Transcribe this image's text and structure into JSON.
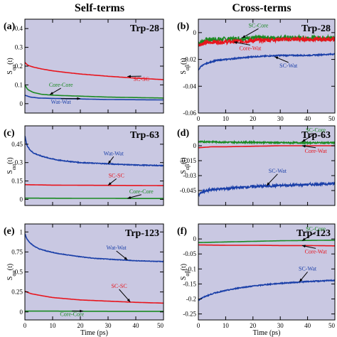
{
  "column_titles": [
    "Self-terms",
    "Cross-terms"
  ],
  "x_axis_label": "Time (ps)",
  "colors": {
    "panel_bg": "#c9c8e2",
    "red": "#e8141c",
    "green": "#1a8a22",
    "blue": "#1a3fa8",
    "axis": "#000000"
  },
  "chart_data": [
    {
      "type": "line",
      "panel": "(a)",
      "title": "Trp-28",
      "ylabel": "S_αα(t)",
      "xlim": [
        0,
        50
      ],
      "ylim": [
        -0.05,
        0.45
      ],
      "xticks": [
        0,
        10,
        20,
        30,
        40,
        50
      ],
      "xtick_labels": [],
      "yticks": [
        0,
        0.1,
        0.2,
        0.3,
        0.4
      ],
      "ytick_labels": [
        "0",
        "0.1",
        "0.2",
        "0.3",
        "0.4"
      ],
      "series": [
        {
          "name": "SC-SC",
          "color": "red",
          "noise": 0.0,
          "x": [
            0,
            1,
            3,
            6,
            10,
            15,
            20,
            30,
            40,
            50
          ],
          "y": [
            0.22,
            0.205,
            0.195,
            0.185,
            0.175,
            0.166,
            0.158,
            0.146,
            0.136,
            0.128
          ]
        },
        {
          "name": "Core-Core",
          "color": "green",
          "noise": 0.0,
          "x": [
            0,
            1,
            3,
            6,
            10,
            20,
            30,
            50
          ],
          "y": [
            0.1,
            0.075,
            0.06,
            0.05,
            0.045,
            0.04,
            0.035,
            0.03
          ]
        },
        {
          "name": "Wat-Wat",
          "color": "blue",
          "noise": 0.0,
          "x": [
            0,
            2,
            5,
            10,
            20,
            30,
            50
          ],
          "y": [
            0.045,
            0.035,
            0.03,
            0.028,
            0.025,
            0.022,
            0.02
          ]
        }
      ],
      "annotations": [
        {
          "text": "SC-SC",
          "color": "red",
          "at": [
            42,
            0.12
          ],
          "tip": [
            37,
            0.145
          ]
        },
        {
          "text": "Core-Core",
          "color": "green",
          "at": [
            13,
            0.09
          ],
          "tip": [
            9,
            0.048
          ]
        },
        {
          "text": "Wat-Wat",
          "color": "blue",
          "at": [
            13,
            0.0
          ],
          "tip": [
            20,
            0.027
          ]
        }
      ]
    },
    {
      "type": "line",
      "panel": "(b)",
      "title": "Trp-28",
      "ylabel": "S_αβ(t)",
      "xlim": [
        0,
        50
      ],
      "ylim": [
        -0.06,
        0.01
      ],
      "xticks": [
        0,
        10,
        20,
        30,
        40,
        50
      ],
      "xtick_labels": [
        "0",
        "10",
        "20",
        "30",
        "40",
        "50"
      ],
      "yticks": [
        0,
        -0.02,
        -0.04,
        -0.06
      ],
      "ytick_labels": [
        "0",
        "-0.02",
        "-0.04",
        "-0.06"
      ],
      "series": [
        {
          "name": "SC-Core",
          "color": "green",
          "noise": 0.0018,
          "x": [
            0,
            2,
            5,
            10,
            20,
            30,
            50
          ],
          "y": [
            -0.008,
            -0.006,
            -0.005,
            -0.005,
            -0.004,
            -0.004,
            -0.004
          ]
        },
        {
          "name": "Core-Wat",
          "color": "red",
          "noise": 0.0015,
          "x": [
            0,
            2,
            5,
            10,
            20,
            30,
            50
          ],
          "y": [
            -0.009,
            -0.008,
            -0.007,
            -0.007,
            -0.006,
            -0.005,
            -0.005
          ]
        },
        {
          "name": "SC-Wat",
          "color": "blue",
          "noise": 0.0004,
          "x": [
            0,
            1,
            3,
            6,
            10,
            15,
            20,
            30,
            40,
            50
          ],
          "y": [
            -0.028,
            -0.025,
            -0.023,
            -0.021,
            -0.02,
            -0.019,
            -0.018,
            -0.017,
            -0.017,
            -0.016
          ]
        }
      ],
      "annotations": [
        {
          "text": "SC-Core",
          "color": "green",
          "at": [
            22,
            0.004
          ],
          "tip": [
            16,
            -0.004
          ]
        },
        {
          "text": "Core-Wat",
          "color": "red",
          "at": [
            19,
            -0.013
          ],
          "tip": [
            13,
            -0.007
          ]
        },
        {
          "text": "SC-Wat",
          "color": "blue",
          "at": [
            33,
            -0.026
          ],
          "tip": [
            28,
            -0.018
          ]
        }
      ]
    },
    {
      "type": "line",
      "panel": "(c)",
      "title": "Trp-63",
      "ylabel": "S_αα(t)",
      "xlim": [
        0,
        50
      ],
      "ylim": [
        -0.05,
        0.6
      ],
      "xticks": [
        0,
        10,
        20,
        30,
        40,
        50
      ],
      "xtick_labels": [],
      "yticks": [
        0,
        0.15,
        0.3,
        0.45
      ],
      "ytick_labels": [
        "0",
        "0.15",
        "0.3",
        "0.45"
      ],
      "series": [
        {
          "name": "Wat-Wat",
          "color": "blue",
          "noise": 0.003,
          "x": [
            0,
            0.5,
            1,
            2,
            3,
            5,
            8,
            12,
            16,
            20,
            25,
            30,
            35,
            40,
            45,
            50
          ],
          "y": [
            0.52,
            0.46,
            0.43,
            0.4,
            0.38,
            0.36,
            0.34,
            0.32,
            0.31,
            0.3,
            0.295,
            0.29,
            0.285,
            0.28,
            0.278,
            0.275
          ]
        },
        {
          "name": "SC-SC",
          "color": "red",
          "noise": 0.0,
          "x": [
            0,
            5,
            10,
            20,
            30,
            40,
            50
          ],
          "y": [
            0.12,
            0.118,
            0.116,
            0.115,
            0.114,
            0.113,
            0.112
          ]
        },
        {
          "name": "Core-Core",
          "color": "green",
          "noise": 0.0,
          "x": [
            0,
            10,
            20,
            30,
            40,
            50
          ],
          "y": [
            0.01,
            0.009,
            0.008,
            0.008,
            0.007,
            0.007
          ]
        }
      ],
      "annotations": [
        {
          "text": "Wat-Wat",
          "color": "blue",
          "at": [
            32,
            0.36
          ],
          "tip": [
            30,
            0.29
          ]
        },
        {
          "text": "SC-SC",
          "color": "red",
          "at": [
            33,
            0.18
          ],
          "tip": [
            30,
            0.115
          ]
        },
        {
          "text": "Core-Core",
          "color": "green",
          "at": [
            42,
            0.05
          ],
          "tip": [
            37,
            0.008
          ]
        }
      ]
    },
    {
      "type": "line",
      "panel": "(d)",
      "title": "Trp-63",
      "ylabel": "S_αβ(t)",
      "xlim": [
        0,
        50
      ],
      "ylim": [
        -0.06,
        0.02
      ],
      "xticks": [
        0,
        10,
        20,
        30,
        40,
        50
      ],
      "xtick_labels": [],
      "yticks": [
        0,
        -0.015,
        -0.03,
        -0.045
      ],
      "ytick_labels": [
        "0",
        "-0.015",
        "-0.03",
        "-0.045"
      ],
      "series": [
        {
          "name": "SC-Core",
          "color": "green",
          "noise": 0.0007,
          "x": [
            0,
            5,
            10,
            20,
            30,
            40,
            50
          ],
          "y": [
            0.004,
            0.004,
            0.0035,
            0.0035,
            0.003,
            0.003,
            0.003
          ]
        },
        {
          "name": "Core-Wat",
          "color": "red",
          "noise": 0.0,
          "x": [
            0,
            5,
            10,
            20,
            30,
            40,
            50
          ],
          "y": [
            -0.002,
            -0.001,
            -0.001,
            -0.0005,
            0.0,
            0.0,
            0.0
          ]
        },
        {
          "name": "SC-Wat",
          "color": "blue",
          "noise": 0.0012,
          "x": [
            0,
            2,
            5,
            10,
            15,
            20,
            30,
            40,
            50
          ],
          "y": [
            -0.049,
            -0.046,
            -0.044,
            -0.043,
            -0.042,
            -0.041,
            -0.04,
            -0.039,
            -0.038
          ]
        }
      ],
      "annotations": [
        {
          "text": "SC-Core",
          "color": "green",
          "at": [
            43,
            0.014
          ],
          "tip": [
            38,
            0.004
          ]
        },
        {
          "text": "Core-Wat",
          "color": "red",
          "at": [
            43,
            -0.007
          ],
          "tip": [
            38,
            0.0
          ]
        },
        {
          "text": "SC-Wat",
          "color": "blue",
          "at": [
            29,
            -0.027
          ],
          "tip": [
            25,
            -0.04
          ]
        }
      ]
    },
    {
      "type": "line",
      "panel": "(e)",
      "title": "Trp-123",
      "ylabel": "S_αα(t)",
      "xlim": [
        0,
        50
      ],
      "ylim": [
        -0.1,
        1.1
      ],
      "xticks": [
        0,
        10,
        20,
        30,
        40,
        50
      ],
      "xtick_labels": [
        "0",
        "10",
        "20",
        "30",
        "40",
        "50"
      ],
      "yticks": [
        0,
        0.25,
        0.5,
        0.75,
        1.0
      ],
      "ytick_labels": [
        "0",
        "0.25",
        "0.5",
        "0.75",
        "1"
      ],
      "series": [
        {
          "name": "Wat-Wat",
          "color": "blue",
          "noise": 0.003,
          "x": [
            0,
            0.5,
            1,
            2,
            3,
            5,
            8,
            12,
            16,
            20,
            25,
            30,
            35,
            40,
            45,
            50
          ],
          "y": [
            0.98,
            0.93,
            0.9,
            0.86,
            0.83,
            0.79,
            0.76,
            0.73,
            0.71,
            0.69,
            0.67,
            0.66,
            0.65,
            0.64,
            0.635,
            0.63
          ]
        },
        {
          "name": "SC-SC",
          "color": "red",
          "noise": 0.0,
          "x": [
            0,
            2,
            5,
            10,
            15,
            20,
            30,
            40,
            50
          ],
          "y": [
            0.26,
            0.23,
            0.21,
            0.18,
            0.165,
            0.15,
            0.135,
            0.12,
            0.11
          ]
        },
        {
          "name": "Core-Core",
          "color": "green",
          "noise": 0.0,
          "x": [
            0,
            10,
            20,
            30,
            40,
            50
          ],
          "y": [
            0.01,
            0.01,
            0.009,
            0.008,
            0.008,
            0.008
          ]
        }
      ],
      "annotations": [
        {
          "text": "Wat-Wat",
          "color": "blue",
          "at": [
            33,
            0.78
          ],
          "tip": [
            37,
            0.65
          ]
        },
        {
          "text": "SC-SC",
          "color": "red",
          "at": [
            34,
            0.3
          ],
          "tip": [
            38,
            0.125
          ]
        },
        {
          "text": "Core-Core",
          "color": "green",
          "at": [
            17,
            -0.05
          ],
          "tip": [
            21,
            0.01
          ]
        }
      ]
    },
    {
      "type": "line",
      "panel": "(f)",
      "title": "Trp-123",
      "ylabel": "S_αβ(t)",
      "xlim": [
        0,
        50
      ],
      "ylim": [
        -0.27,
        0.05
      ],
      "xticks": [
        0,
        10,
        20,
        30,
        40,
        50
      ],
      "xtick_labels": [
        "0",
        "10",
        "20",
        "30",
        "40",
        "50"
      ],
      "yticks": [
        0,
        -0.05,
        -0.1,
        -0.15,
        -0.2,
        -0.25
      ],
      "ytick_labels": [
        "0",
        "-0.05",
        "-0.1",
        "-0.15",
        "-0.2",
        "-0.25"
      ],
      "series": [
        {
          "name": "SC-Core",
          "color": "green",
          "noise": 0.0,
          "x": [
            0,
            10,
            20,
            30,
            40,
            50
          ],
          "y": [
            -0.012,
            -0.01,
            -0.008,
            -0.006,
            -0.005,
            -0.004
          ]
        },
        {
          "name": "Core-Wat",
          "color": "red",
          "noise": 0.0,
          "x": [
            0,
            10,
            20,
            30,
            40,
            50
          ],
          "y": [
            -0.02,
            -0.021,
            -0.021,
            -0.022,
            -0.022,
            -0.023
          ]
        },
        {
          "name": "SC-Wat",
          "color": "blue",
          "noise": 0.0015,
          "x": [
            0,
            1,
            3,
            6,
            10,
            15,
            20,
            25,
            30,
            35,
            40,
            45,
            50
          ],
          "y": [
            -0.205,
            -0.198,
            -0.19,
            -0.18,
            -0.172,
            -0.163,
            -0.157,
            -0.152,
            -0.148,
            -0.145,
            -0.142,
            -0.14,
            -0.138
          ]
        }
      ],
      "annotations": [
        {
          "text": "SC-Core",
          "color": "green",
          "at": [
            43,
            0.028
          ],
          "tip": [
            38,
            -0.006
          ]
        },
        {
          "text": "Core-Wat",
          "color": "red",
          "at": [
            43,
            -0.048
          ],
          "tip": [
            38,
            -0.022
          ]
        },
        {
          "text": "SC-Wat",
          "color": "blue",
          "at": [
            40,
            -0.105
          ],
          "tip": [
            37,
            -0.143
          ]
        }
      ]
    }
  ]
}
